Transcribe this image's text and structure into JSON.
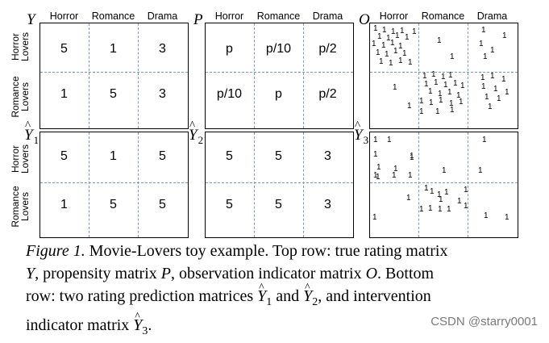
{
  "column_headers": [
    "Horror",
    "Romance",
    "Drama"
  ],
  "row_headers": [
    [
      "Horror",
      "Lovers"
    ],
    [
      "Romance",
      "Lovers"
    ]
  ],
  "matrices": {
    "Y": {
      "label": "Y",
      "hat": false,
      "sub": "",
      "values": [
        [
          "5",
          "1",
          "3"
        ],
        [
          "1",
          "5",
          "3"
        ]
      ]
    },
    "P": {
      "label": "P",
      "hat": false,
      "sub": "",
      "values": [
        [
          "p",
          "p/10",
          "p/2"
        ],
        [
          "p/10",
          "p",
          "p/2"
        ]
      ]
    },
    "Y1": {
      "label": "Y",
      "hat": true,
      "sub": "1",
      "values": [
        [
          "5",
          "1",
          "5"
        ],
        [
          "1",
          "5",
          "5"
        ]
      ]
    },
    "Y2": {
      "label": "Y",
      "hat": true,
      "sub": "2",
      "values": [
        [
          "5",
          "5",
          "3"
        ],
        [
          "5",
          "5",
          "3"
        ]
      ]
    }
  },
  "indicator_matrices": {
    "O": {
      "label": "O",
      "hat": false,
      "sub": "",
      "mark": "1"
    },
    "Y3": {
      "label": "Y",
      "hat": true,
      "sub": "3",
      "mark": "1"
    }
  },
  "caption": {
    "figure_label": "Figure 1.",
    "line1_a": " Movie-Lovers toy example. Top row: true rating matrix",
    "line2_Y": "Y",
    "line2_a": ", propensity matrix ",
    "line2_P": "P",
    "line2_b": ", observation indicator matrix ",
    "line2_O": "O",
    "line2_c": ". Bottom",
    "line3_a": "row: two rating prediction matrices ",
    "line3_Y1": "Y",
    "line3_sub1": "1",
    "line3_b": " and ",
    "line3_Y2": "Y",
    "line3_sub2": "2",
    "line3_c": ", and intervention",
    "line4_a": "indicator matrix ",
    "line4_Y3": "Y",
    "line4_sub3": "3",
    "line4_b": "."
  },
  "watermark": "CSDN @starry0001"
}
